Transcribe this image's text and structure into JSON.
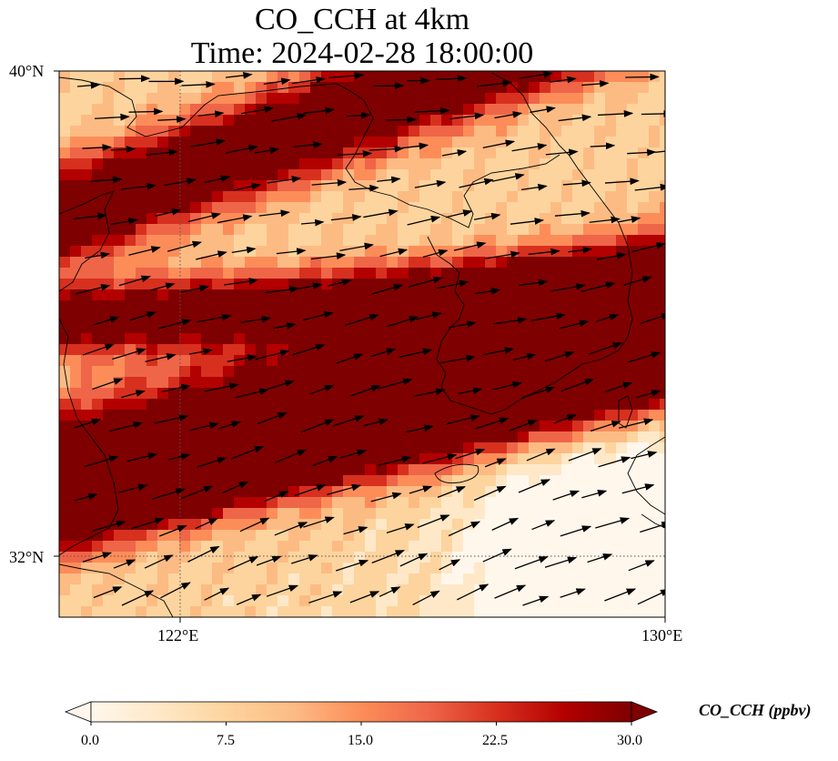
{
  "title": {
    "line1": "CO_CCH at 4km",
    "line2": "Time: 2024-02-28 18:00:00"
  },
  "map": {
    "lon_range": [
      120,
      130
    ],
    "lat_range": [
      31,
      40
    ],
    "lat_ticks": [
      {
        "value": 40,
        "label": "40°N"
      },
      {
        "value": 32,
        "label": "32°N"
      }
    ],
    "lon_ticks": [
      {
        "value": 122,
        "label": "122°E"
      },
      {
        "value": 130,
        "label": "130°E"
      }
    ],
    "gridlines": "dotted",
    "field": "CO_CCH",
    "overlay": "wind vectors"
  },
  "colorbar": {
    "label": "CO_CCH (ppbv)",
    "colormap": "OrRd",
    "range": [
      0,
      30
    ],
    "extend": "both",
    "ticks": [
      "0.0",
      "7.5",
      "15.0",
      "22.5",
      "30.0"
    ],
    "colors": [
      "#fff7ec",
      "#fee8c8",
      "#fdd49e",
      "#fdbb84",
      "#fc8d59",
      "#ef6548",
      "#d7301f",
      "#b30000",
      "#7f0000"
    ]
  }
}
